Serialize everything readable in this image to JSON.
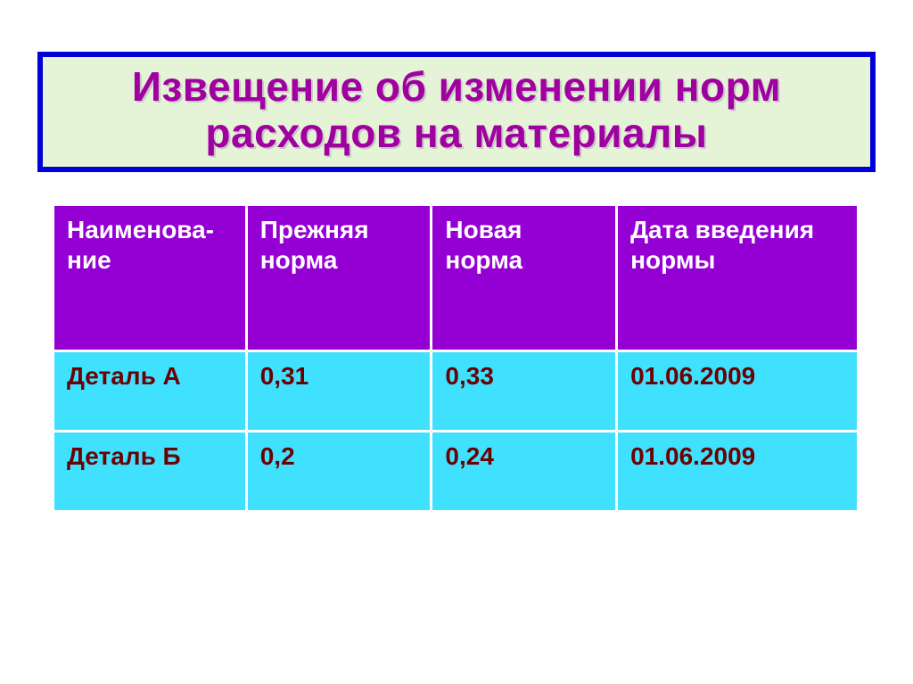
{
  "title": {
    "line1": "Извещение об изменении норм",
    "line2": "расходов на материалы"
  },
  "table": {
    "columns": [
      "Наименова-ние",
      "Прежняя норма",
      "Новая норма",
      "Дата введения нормы"
    ],
    "rows": [
      {
        "name": "Деталь А",
        "old": "0,31",
        "new": "0,33",
        "date": "01.06.2009"
      },
      {
        "name": "Деталь Б",
        "old": "0,2",
        "new": "0,24",
        "date": "01.06.2009"
      }
    ]
  },
  "style": {
    "slide_bg": "#ffffff",
    "title_bg": "#e5f4d7",
    "title_border": "#0000d6",
    "title_text_color": "#a000a0",
    "title_shadow_color": "#c8c8c8",
    "title_fontsize": 46,
    "header_bg": "#9400d3",
    "header_text_color": "#ffffff",
    "header_fontsize": 28,
    "cell_bg": "#40e0ff",
    "cell_text_color": "#6b0202",
    "cell_fontsize": 28,
    "border_color": "#ffffff",
    "border_width": 3,
    "col_widths_pct": [
      24,
      23,
      23,
      30
    ],
    "header_row_height": 164,
    "data_row_height": 90
  }
}
